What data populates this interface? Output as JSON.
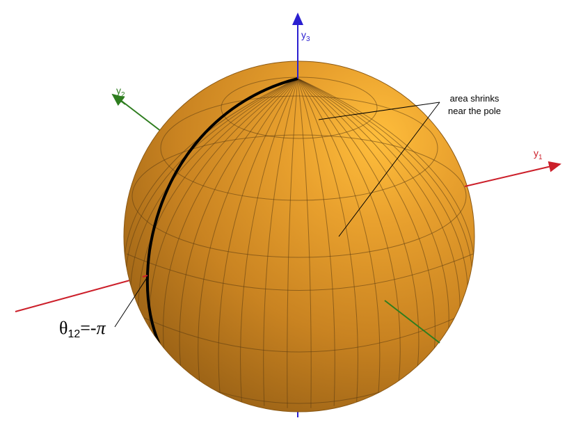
{
  "axes": {
    "y1": {
      "letter": "y",
      "index": "1",
      "color": "#cc1f2a"
    },
    "y2": {
      "letter": "y",
      "index": "2",
      "color": "#2e7d1f"
    },
    "y3": {
      "letter": "y",
      "index": "3",
      "color": "#2a1fd0"
    }
  },
  "sphere": {
    "fill": "#d9901f",
    "gridline": "#5a3a10"
  },
  "annotation": {
    "line1": "area shrinks",
    "line2": "near the pole"
  },
  "curve_label": {
    "theta": "θ",
    "subscript": "12",
    "equals": "=-",
    "pi": "π"
  }
}
